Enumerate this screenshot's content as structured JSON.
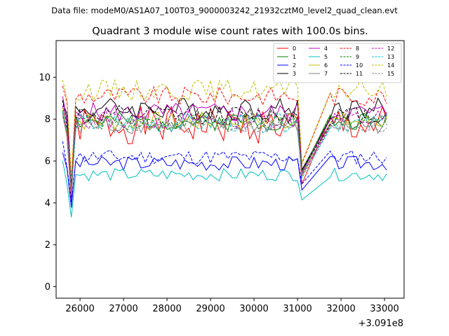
{
  "chart_data": {
    "type": "line",
    "suptitle": "Data file: modeM0/AS1A07_100T03_9000003242_21932cztM0_level2_quad_clean.evt",
    "title": "Quadrant 3 module wise count rates with 100.0s bins.",
    "xlabel": "",
    "ylabel": "",
    "x_offset_label": "+3.091e8",
    "xlim": [
      25450,
      33450
    ],
    "ylim": [
      -0.55,
      11.75
    ],
    "xticks": [
      26000,
      27000,
      28000,
      29000,
      30000,
      31000,
      32000,
      33000
    ],
    "xtick_labels": [
      "26000",
      "27000",
      "28000",
      "29000",
      "30000",
      "31000",
      "32000",
      "33000"
    ],
    "yticks": [
      0,
      2,
      4,
      6,
      8,
      10
    ],
    "ytick_labels": [
      "0",
      "2",
      "4",
      "6",
      "8",
      "10"
    ],
    "legend_location": "top-right",
    "gaps": [
      [
        25650,
        25750
      ],
      [
        31150,
        31750
      ]
    ],
    "x_segments": [
      {
        "start": 25600,
        "step": 100,
        "count": 56
      },
      {
        "start": 31750,
        "step": 100,
        "count": 14
      }
    ],
    "series": [
      {
        "name": "0",
        "color": "#ff0000",
        "dash": false,
        "base": 7.7,
        "amp": 0.9,
        "dip_level": 3.9,
        "seed": 1
      },
      {
        "name": "1",
        "color": "#008000",
        "dash": false,
        "base": 7.9,
        "amp": 0.45,
        "dip_level": 4.6,
        "seed": 2
      },
      {
        "name": "2",
        "color": "#0000ff",
        "dash": false,
        "base": 5.9,
        "amp": 0.35,
        "dip_level": 3.8,
        "seed": 3
      },
      {
        "name": "3",
        "color": "#000000",
        "dash": false,
        "base": 8.5,
        "amp": 0.55,
        "dip_level": 4.8,
        "seed": 4
      },
      {
        "name": "4",
        "color": "#bf00bf",
        "dash": false,
        "base": 8.3,
        "amp": 0.5,
        "dip_level": 4.7,
        "seed": 5
      },
      {
        "name": "5",
        "color": "#00bfbf",
        "dash": false,
        "base": 5.35,
        "amp": 0.3,
        "dip_level": 3.4,
        "seed": 6
      },
      {
        "name": "6",
        "color": "#bfbf00",
        "dash": false,
        "base": 7.9,
        "amp": 0.45,
        "dip_level": 4.6,
        "seed": 7
      },
      {
        "name": "7",
        "color": "#808080",
        "dash": false,
        "base": 7.7,
        "amp": 0.4,
        "dip_level": 4.5,
        "seed": 8
      },
      {
        "name": "8",
        "color": "#ff0000",
        "dash": true,
        "base": 9.1,
        "amp": 0.45,
        "dip_level": 5.0,
        "seed": 9
      },
      {
        "name": "9",
        "color": "#008000",
        "dash": true,
        "base": 7.9,
        "amp": 0.4,
        "dip_level": 4.7,
        "seed": 10
      },
      {
        "name": "10",
        "color": "#0000ff",
        "dash": true,
        "base": 6.2,
        "amp": 0.35,
        "dip_level": 4.1,
        "seed": 11
      },
      {
        "name": "11",
        "color": "#000000",
        "dash": true,
        "base": 8.2,
        "amp": 0.45,
        "dip_level": 4.8,
        "seed": 12
      },
      {
        "name": "12",
        "color": "#bf00bf",
        "dash": true,
        "base": 8.0,
        "amp": 0.5,
        "dip_level": 4.6,
        "seed": 13
      },
      {
        "name": "13",
        "color": "#00bfbf",
        "dash": true,
        "base": 7.8,
        "amp": 0.45,
        "dip_level": 4.5,
        "seed": 14
      },
      {
        "name": "14",
        "color": "#bfbf00",
        "dash": true,
        "base": 9.4,
        "amp": 0.5,
        "dip_level": 5.0,
        "seed": 15
      },
      {
        "name": "15",
        "color": "#808080",
        "dash": true,
        "base": 7.7,
        "amp": 0.4,
        "dip_level": 4.5,
        "seed": 16
      }
    ]
  }
}
